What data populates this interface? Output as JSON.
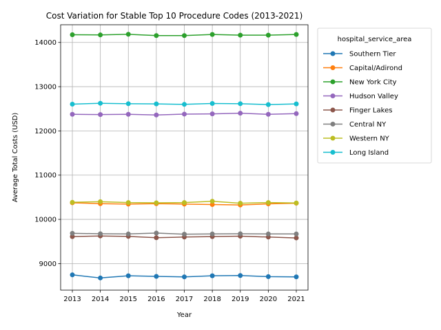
{
  "chart_data": {
    "type": "line",
    "title": "Cost Variation for Stable Top 10 Procedure Codes (2013-2021)",
    "xlabel": "Year",
    "ylabel": "Average Total Costs (USD)",
    "x": [
      "2013",
      "2014",
      "2015",
      "2016",
      "2017",
      "2018",
      "2019",
      "2020",
      "2021"
    ],
    "ylim": [
      8400,
      14400
    ],
    "yticks": [
      "9000",
      "10000",
      "11000",
      "12000",
      "13000",
      "14000"
    ],
    "grid": true,
    "legend": {
      "title": "hospital_service_area",
      "placement": "outside-right"
    },
    "series": [
      {
        "name": "Southern Tier",
        "color": "#1f77b4",
        "values": [
          8745,
          8675,
          8725,
          8710,
          8700,
          8725,
          8730,
          8705,
          8700
        ]
      },
      {
        "name": "Capital/Adirond",
        "color": "#ff7f0e",
        "values": [
          10375,
          10355,
          10345,
          10355,
          10345,
          10335,
          10325,
          10350,
          10365
        ]
      },
      {
        "name": "New York City",
        "color": "#2ca02c",
        "values": [
          14175,
          14170,
          14185,
          14155,
          14155,
          14180,
          14165,
          14165,
          14180
        ]
      },
      {
        "name": "Hudson Valley",
        "color": "#9467bd",
        "values": [
          12375,
          12370,
          12375,
          12360,
          12380,
          12385,
          12400,
          12375,
          12390
        ]
      },
      {
        "name": "Finger Lakes",
        "color": "#8c564b",
        "values": [
          9610,
          9625,
          9615,
          9585,
          9600,
          9610,
          9620,
          9600,
          9580
        ]
      },
      {
        "name": "Central NY",
        "color": "#7f7f7f",
        "values": [
          9685,
          9675,
          9670,
          9690,
          9665,
          9670,
          9675,
          9670,
          9670
        ]
      },
      {
        "name": "Western NY",
        "color": "#bcbd22",
        "values": [
          10385,
          10400,
          10380,
          10375,
          10380,
          10410,
          10365,
          10380,
          10370
        ]
      },
      {
        "name": "Long Island",
        "color": "#17becf",
        "values": [
          12605,
          12625,
          12615,
          12610,
          12600,
          12620,
          12615,
          12595,
          12610
        ]
      }
    ]
  }
}
